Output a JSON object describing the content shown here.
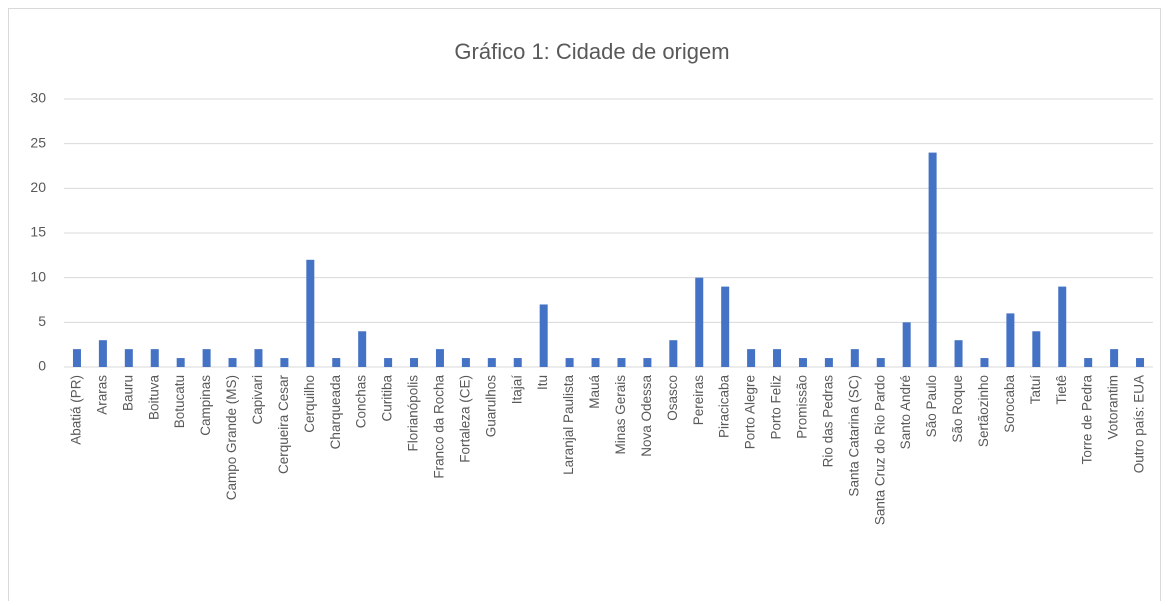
{
  "chart_data": {
    "type": "bar",
    "title": "Gráfico 1: Cidade de origem",
    "categories": [
      "Abatiá (PR)",
      "Araras",
      "Bauru",
      "Boituva",
      "Botucatu",
      "Campinas",
      "Campo Grande (MS)",
      "Capivari",
      "Cerqueira Cesar",
      "Cerquilho",
      "Charqueada",
      "Conchas",
      "Curitiba",
      "Florianópolis",
      "Franco da Rocha",
      "Fortaleza (CE)",
      "Guarulhos",
      "Itajaí",
      "Itu",
      "Laranjal Paulista",
      "Mauá",
      "Minas Gerais",
      "Nova Odessa",
      "Osasco",
      "Pereiras",
      "Piracicaba",
      "Porto Alegre",
      "Porto Feliz",
      "Promissão",
      "Rio das Pedras",
      "Santa Catarina (SC)",
      "Santa Cruz do Rio Pardo",
      "Santo André",
      "São Paulo",
      "São Roque",
      "Sertãozinho",
      "Sorocaba",
      "Tatuí",
      "Tietê",
      "Torre de Pedra",
      "Votorantim",
      "Outro país: EUA"
    ],
    "values": [
      2,
      3,
      2,
      2,
      1,
      2,
      1,
      2,
      1,
      12,
      1,
      4,
      1,
      1,
      2,
      1,
      1,
      1,
      7,
      1,
      1,
      1,
      1,
      3,
      10,
      9,
      2,
      2,
      1,
      1,
      2,
      1,
      5,
      24,
      3,
      1,
      6,
      4,
      9,
      1,
      2,
      1
    ],
    "color": "#4472c4",
    "ylim": [
      0,
      30
    ],
    "yticks": [
      0,
      5,
      10,
      15,
      20,
      25,
      30
    ],
    "grid": true
  }
}
